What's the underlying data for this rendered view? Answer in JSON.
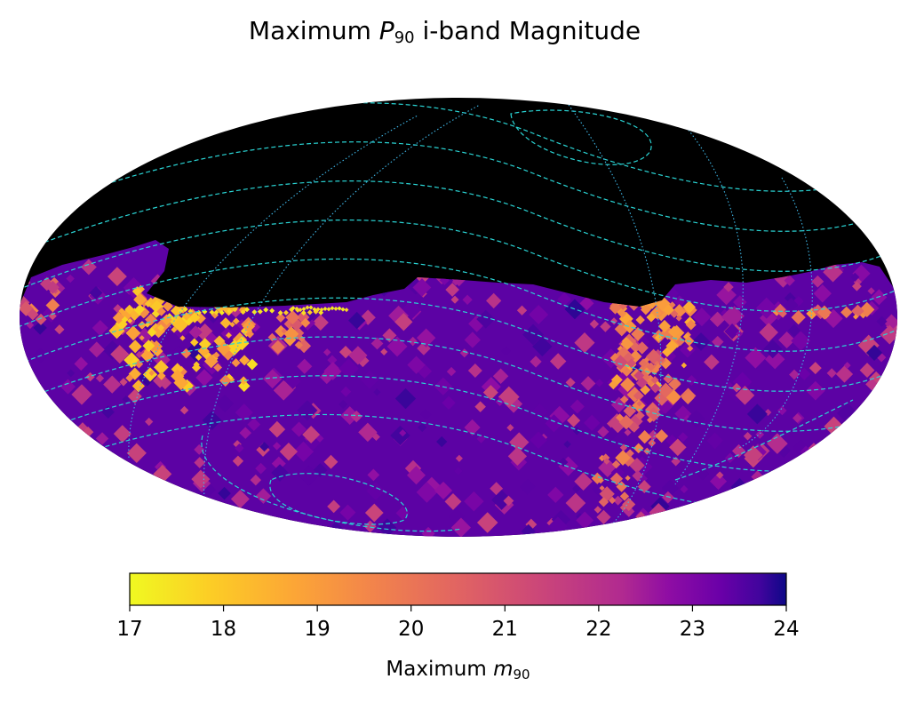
{
  "chart_data": {
    "type": "heatmap",
    "projection": "mollweide",
    "title": {
      "prefix": "Maximum ",
      "symbol": "P",
      "subscript": "90",
      "suffix": " i-band Magnitude"
    },
    "colorbar": {
      "colormap": "plasma (reversed)",
      "min": 17,
      "max": 24,
      "ticks": [
        "17",
        "18",
        "19",
        "20",
        "21",
        "22",
        "23",
        "24"
      ],
      "label_prefix": "Maximum ",
      "label_symbol": "m",
      "label_subscript": "90"
    },
    "no_data_region": "north (dec above ~+30°)",
    "typical_value": 22.5,
    "bright_regions": [
      {
        "name": "galactic-plane-west",
        "approx_min": 17.5
      },
      {
        "name": "galactic-plane-east",
        "approx_min": 18.5
      }
    ],
    "overlay": {
      "dashed_color": "#2ad4d4",
      "dotted_color": "#3fb8e8"
    }
  }
}
